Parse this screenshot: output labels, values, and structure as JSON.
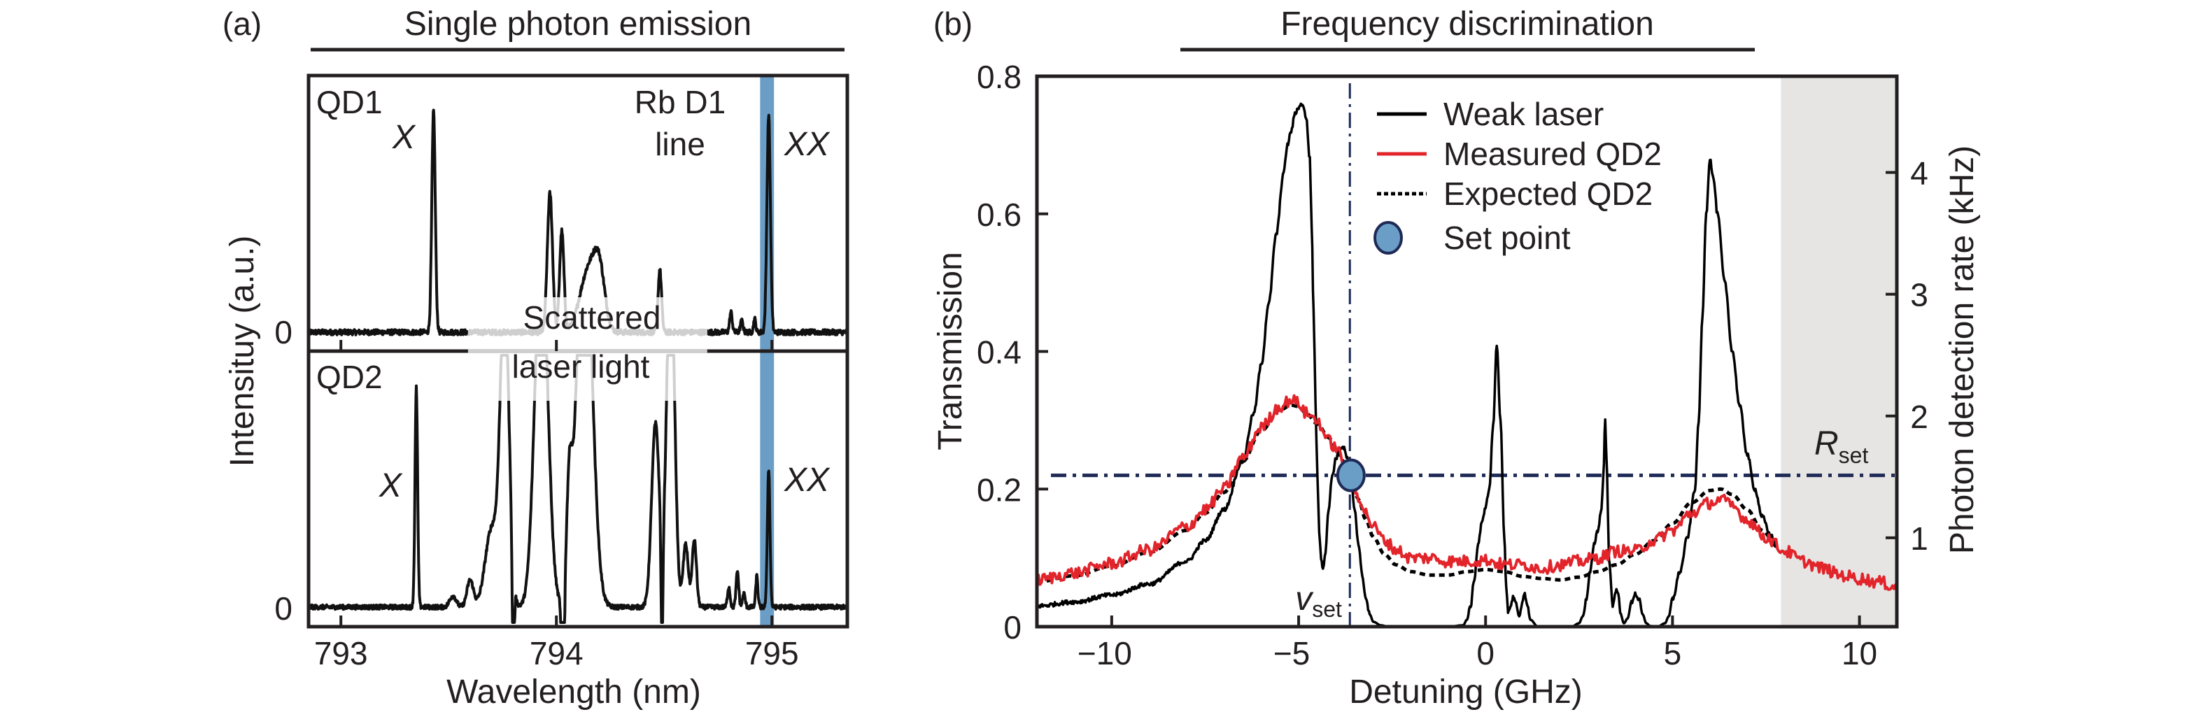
{
  "figure": {
    "panel_a_label": "(a)",
    "panel_b_label": "(b)"
  },
  "chart_data": [
    {
      "type": "line",
      "panel": "a",
      "title": "Single photon emission",
      "xlabel": "Wavelength (nm)",
      "ylabel": "Intensituy (a.u.)",
      "xlim": [
        792.85,
        795.35
      ],
      "xticks": [
        793,
        794,
        795
      ],
      "xtick_labels": [
        "793",
        "794",
        "795"
      ],
      "ytick_labels": [
        "0",
        "0"
      ],
      "grid": false,
      "highlight_band": {
        "label": "Rb D1 line",
        "range": [
          794.955,
          795.0
        ],
        "color": "#6a9ec7"
      },
      "scattered_laser_region": {
        "label_line1": "Scattered",
        "label_line2": "laser light",
        "range": [
          793.59,
          794.7
        ],
        "color": "#cfcfcf"
      },
      "subplots": [
        {
          "name": "QD1",
          "label": "QD1",
          "peak_labels": [
            {
              "text": "X",
              "x": 793.27,
              "y": 0.9
            },
            {
              "text": "XX",
              "x": 795.18,
              "y": 0.82
            }
          ],
          "ylim": [
            -0.08,
            1.15
          ],
          "baseline_noise": 0.012,
          "peaks": [
            {
              "center": 793.43,
              "width": 0.008,
              "amplitude": 0.99
            },
            {
              "center": 793.97,
              "width": 0.012,
              "amplitude": 0.62
            },
            {
              "center": 794.025,
              "width": 0.01,
              "amplitude": 0.45
            },
            {
              "center": 794.15,
              "width": 0.04,
              "amplitude": 0.28
            },
            {
              "center": 794.2,
              "width": 0.025,
              "amplitude": 0.22
            },
            {
              "center": 794.48,
              "width": 0.008,
              "amplitude": 0.28
            },
            {
              "center": 794.81,
              "width": 0.006,
              "amplitude": 0.09
            },
            {
              "center": 794.86,
              "width": 0.006,
              "amplitude": 0.05
            },
            {
              "center": 794.92,
              "width": 0.005,
              "amplitude": 0.06
            },
            {
              "center": 794.985,
              "width": 0.008,
              "amplitude": 0.97
            }
          ]
        },
        {
          "name": "QD2",
          "label": "QD2",
          "peak_labels": [
            {
              "text": "X",
              "x": 793.22,
              "y": 0.55
            },
            {
              "text": "XX",
              "x": 795.18,
              "y": 0.58
            }
          ],
          "ylim": [
            -0.08,
            1.15
          ],
          "baseline_noise": 0.01,
          "peaks": [
            {
              "center": 793.35,
              "width": 0.006,
              "amplitude": 0.98
            },
            {
              "center": 793.52,
              "width": 0.015,
              "amplitude": 0.05
            },
            {
              "center": 793.6,
              "width": 0.015,
              "amplitude": 0.12
            },
            {
              "center": 793.7,
              "width": 0.03,
              "amplitude": 0.35
            },
            {
              "center": 793.76,
              "width": 0.02,
              "amplitude": 1.4
            },
            {
              "center": 793.8,
              "width": 0.004,
              "amplitude": -0.7
            },
            {
              "center": 793.93,
              "width": 0.03,
              "amplitude": 1.6
            },
            {
              "center": 794.03,
              "width": 0.005,
              "amplitude": -1.1
            },
            {
              "center": 794.06,
              "width": 0.012,
              "amplitude": 0.45
            },
            {
              "center": 794.13,
              "width": 0.035,
              "amplitude": 1.8
            },
            {
              "center": 794.46,
              "width": 0.018,
              "amplitude": 0.82
            },
            {
              "center": 794.53,
              "width": 0.018,
              "amplitude": 1.6
            },
            {
              "center": 794.49,
              "width": 0.004,
              "amplitude": -0.55
            },
            {
              "center": 794.6,
              "width": 0.012,
              "amplitude": 0.28
            },
            {
              "center": 794.64,
              "width": 0.01,
              "amplitude": 0.3
            },
            {
              "center": 794.8,
              "width": 0.006,
              "amplitude": 0.09
            },
            {
              "center": 794.84,
              "width": 0.006,
              "amplitude": 0.16
            },
            {
              "center": 794.87,
              "width": 0.006,
              "amplitude": 0.06
            },
            {
              "center": 794.93,
              "width": 0.005,
              "amplitude": 0.14
            },
            {
              "center": 794.985,
              "width": 0.006,
              "amplitude": 0.62
            }
          ]
        }
      ]
    },
    {
      "type": "line",
      "panel": "b",
      "title": "Frequency discrimination",
      "xlabel": "Detuning (GHz)",
      "ylabel": "Transmission",
      "ylabel_right": "Photon detection rate (kHz)",
      "xlim": [
        -12,
        11
      ],
      "ylim": [
        0,
        0.8
      ],
      "ylim_right": [
        0.27,
        4.79
      ],
      "xticks": [
        -10,
        -5,
        0,
        5,
        10
      ],
      "xtick_labels": [
        "−10",
        "−5",
        "0",
        "5",
        "10"
      ],
      "yticks": [
        0,
        0.2,
        0.4,
        0.6,
        0.8
      ],
      "ytick_labels": [
        "0",
        "0.2",
        "0.4",
        "0.6",
        "0.8"
      ],
      "yticks_right": [
        1,
        2,
        3,
        4
      ],
      "ytick_labels_right": [
        "1",
        "2",
        "3",
        "4"
      ],
      "grid": false,
      "legend_position": "top-center",
      "shaded_region": {
        "range": [
          7.9,
          11
        ],
        "color": "#e6e5e4"
      },
      "set_point": {
        "label": "Set point",
        "x": -3.6,
        "y": 0.22,
        "color": "#6a9ec7",
        "edge_color": "#1e2a55"
      },
      "v_set": {
        "label": "v",
        "subscript": "set",
        "x": -3.63,
        "color": "#1e2a55"
      },
      "R_set": {
        "label": "R",
        "subscript": "set",
        "y": 0.22,
        "rate_kHz": 1.5,
        "color": "#1e2a55"
      },
      "series": [
        {
          "name": "Weak laser",
          "style": "solid",
          "color": "#000000",
          "x": [
            -12,
            -11,
            -10,
            -9,
            -8,
            -7.5,
            -7,
            -6.5,
            -6.2,
            -6,
            -5.8,
            -5.6,
            -5.4,
            -5.3,
            -5.2,
            -5.1,
            -5.0,
            -4.9,
            -4.8,
            -4.7,
            -4.65,
            -4.6,
            -4.55,
            -4.5,
            -4.45,
            -4.4,
            -4.35,
            -4.3,
            -4.2,
            -4.1,
            -4.0,
            -3.9,
            -3.8,
            -3.7,
            -3.6,
            -3.5,
            -3.4,
            -3.3,
            -3.2,
            -3.1,
            -3.0,
            -2.8,
            -2.6,
            -1.0,
            -0.6,
            -0.5,
            -0.4,
            -0.3,
            -0.2,
            -0.1,
            0.0,
            0.1,
            0.2,
            0.3,
            0.4,
            0.5,
            0.55,
            0.6,
            0.7,
            0.75,
            0.8,
            0.9,
            1.0,
            1.05,
            1.1,
            1.2,
            1.4,
            2.3,
            2.5,
            2.6,
            2.7,
            2.8,
            2.9,
            3.0,
            3.1,
            3.15,
            3.2,
            3.25,
            3.3,
            3.4,
            3.5,
            3.55,
            3.6,
            3.7,
            3.8,
            3.9,
            4.0,
            4.1,
            4.2,
            4.3,
            4.4,
            4.6,
            4.8,
            4.9,
            5.0,
            5.2,
            5.4,
            5.6,
            5.7,
            5.8,
            5.9,
            6.0,
            6.1,
            6.2,
            6.4,
            6.6,
            6.8,
            7.0,
            7.2,
            7.4,
            7.6,
            7.8
          ],
          "y": [
            0.03,
            0.036,
            0.046,
            0.062,
            0.095,
            0.125,
            0.17,
            0.24,
            0.31,
            0.38,
            0.47,
            0.57,
            0.66,
            0.7,
            0.72,
            0.745,
            0.755,
            0.76,
            0.74,
            0.68,
            0.58,
            0.46,
            0.33,
            0.22,
            0.14,
            0.1,
            0.085,
            0.1,
            0.17,
            0.22,
            0.245,
            0.26,
            0.26,
            0.245,
            0.215,
            0.17,
            0.12,
            0.075,
            0.04,
            0.018,
            0.007,
            0.002,
            0.0,
            0.0,
            0.002,
            0.01,
            0.03,
            0.07,
            0.12,
            0.15,
            0.175,
            0.2,
            0.29,
            0.41,
            0.3,
            0.13,
            0.06,
            0.02,
            0.035,
            0.045,
            0.035,
            0.015,
            0.04,
            0.048,
            0.035,
            0.01,
            0.0,
            0.0,
            0.005,
            0.015,
            0.04,
            0.08,
            0.12,
            0.14,
            0.17,
            0.22,
            0.3,
            0.22,
            0.1,
            0.03,
            0.055,
            0.05,
            0.02,
            0.005,
            0.012,
            0.035,
            0.048,
            0.04,
            0.018,
            0.005,
            0.001,
            0.0,
            0.005,
            0.015,
            0.04,
            0.08,
            0.13,
            0.2,
            0.3,
            0.45,
            0.6,
            0.68,
            0.65,
            0.6,
            0.5,
            0.4,
            0.32,
            0.25,
            0.2,
            0.16,
            0.135,
            0.115
          ]
        },
        {
          "name": "Measured QD2",
          "style": "solid",
          "color": "#e2242b",
          "x": [
            -12,
            -11,
            -10,
            -9,
            -8,
            -7.5,
            -7,
            -6.5,
            -6,
            -5.5,
            -5.2,
            -5.0,
            -4.8,
            -4.5,
            -4.2,
            -4.0,
            -3.8,
            -3.6,
            -3.4,
            -3.2,
            -3.0,
            -2.7,
            -2.4,
            -2.0,
            -1.5,
            -1.0,
            -0.5,
            0.0,
            0.5,
            1.0,
            1.5,
            2.0,
            2.5,
            3.0,
            3.5,
            4.0,
            4.5,
            5.0,
            5.5,
            6.0,
            6.3,
            6.6,
            7.0,
            7.5,
            8.0,
            8.5,
            9.0,
            9.5,
            10.0,
            10.5,
            11.0
          ],
          "y": [
            0.068,
            0.078,
            0.092,
            0.112,
            0.145,
            0.17,
            0.2,
            0.245,
            0.29,
            0.32,
            0.33,
            0.325,
            0.31,
            0.3,
            0.27,
            0.26,
            0.24,
            0.215,
            0.19,
            0.165,
            0.145,
            0.125,
            0.112,
            0.1,
            0.1,
            0.095,
            0.095,
            0.097,
            0.09,
            0.09,
            0.085,
            0.09,
            0.095,
            0.1,
            0.11,
            0.11,
            0.125,
            0.14,
            0.165,
            0.18,
            0.185,
            0.175,
            0.155,
            0.13,
            0.11,
            0.095,
            0.085,
            0.075,
            0.07,
            0.065,
            0.058
          ]
        },
        {
          "name": "Expected QD2",
          "style": "dotted",
          "color": "#000000",
          "x": [
            -12,
            -11,
            -10,
            -9,
            -8,
            -7.5,
            -7,
            -6.5,
            -6,
            -5.5,
            -5.2,
            -5.0,
            -4.8,
            -4.5,
            -4.2,
            -4.0,
            -3.8,
            -3.6,
            -3.4,
            -3.2,
            -3.0,
            -2.7,
            -2.4,
            -2.0,
            -1.5,
            -1.0,
            -0.5,
            0.0,
            0.5,
            1.0,
            1.5,
            2.0,
            2.5,
            3.0,
            3.5,
            4.0,
            4.5,
            5.0,
            5.5,
            6.0,
            6.3,
            6.6,
            7.0,
            7.4,
            7.8
          ],
          "y": [
            0.065,
            0.074,
            0.088,
            0.108,
            0.14,
            0.165,
            0.195,
            0.24,
            0.285,
            0.315,
            0.322,
            0.32,
            0.31,
            0.295,
            0.275,
            0.26,
            0.24,
            0.215,
            0.185,
            0.155,
            0.13,
            0.105,
            0.09,
            0.08,
            0.075,
            0.075,
            0.08,
            0.083,
            0.08,
            0.073,
            0.07,
            0.068,
            0.072,
            0.08,
            0.09,
            0.105,
            0.125,
            0.15,
            0.18,
            0.198,
            0.2,
            0.192,
            0.17,
            0.14,
            0.115
          ]
        }
      ],
      "legend": [
        "Weak laser",
        "Measured QD2",
        "Expected QD2",
        "Set point"
      ]
    }
  ]
}
